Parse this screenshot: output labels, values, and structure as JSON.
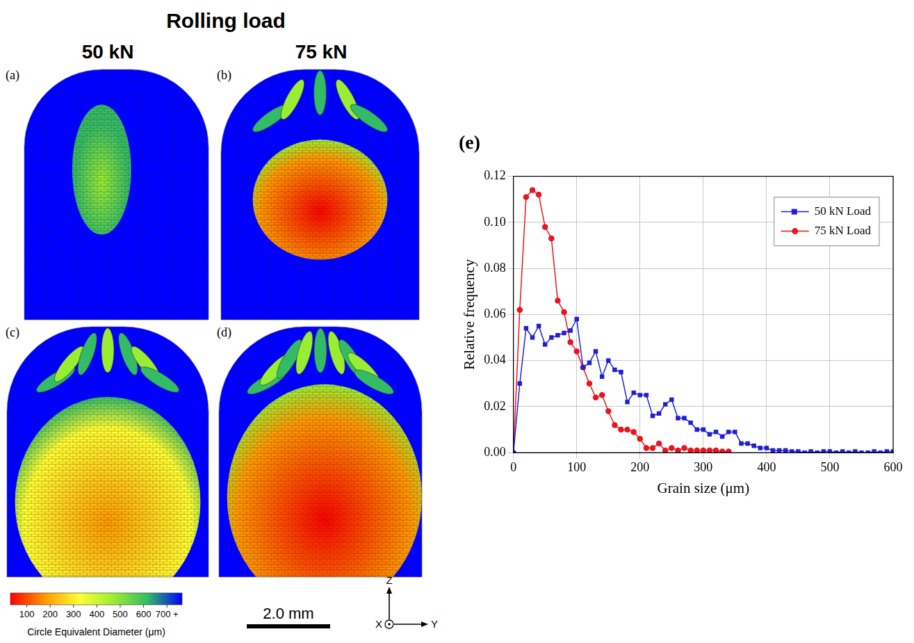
{
  "figure": {
    "title": "Rolling load",
    "columns": [
      "50 kN",
      "75 kN"
    ],
    "panels": [
      "(a)",
      "(b)",
      "(c)",
      "(d)"
    ],
    "colorbar": {
      "label": "Circle Equivalent Diameter (μm)",
      "range": [
        30,
        765
      ],
      "ticks": [
        100,
        200,
        300,
        400,
        500,
        600,
        {
          "value": 700,
          "label": "700 +"
        }
      ],
      "colors": [
        "#ff0000",
        "#ff9900",
        "#ffff33",
        "#99ee33",
        "#33bb66",
        "#0000ff"
      ]
    },
    "scale_bar": "2.0 mm",
    "axes_triad": [
      "Z",
      "X",
      "Y"
    ]
  },
  "chart_data": {
    "type": "line",
    "title": "(e)",
    "xlabel": "Grain size (μm)",
    "ylabel": "Relative frequency",
    "xlim": [
      0,
      600
    ],
    "xticks": [
      0,
      100,
      200,
      300,
      400,
      500,
      600
    ],
    "ylim": [
      0,
      0.12
    ],
    "yticks": [
      {
        "value": 0,
        "label": "0.00"
      },
      {
        "value": 0.02,
        "label": "0.02"
      },
      {
        "value": 0.04,
        "label": "0.04"
      },
      {
        "value": 0.06,
        "label": "0.06"
      },
      {
        "value": 0.08,
        "label": "0.08"
      },
      {
        "value": 0.1,
        "label": "0.10"
      },
      {
        "value": 0.12,
        "label": "0.12"
      }
    ],
    "grid": true,
    "legend": "upper right",
    "series": [
      {
        "name": "50 kN Load",
        "color": "#1f1fd6",
        "marker": "square",
        "x": [
          0,
          10,
          20,
          30,
          40,
          50,
          60,
          70,
          80,
          90,
          100,
          110,
          120,
          130,
          140,
          150,
          160,
          170,
          180,
          190,
          200,
          210,
          220,
          230,
          240,
          250,
          260,
          270,
          280,
          290,
          300,
          310,
          320,
          330,
          340,
          350,
          360,
          370,
          380,
          390,
          400,
          410,
          420,
          430,
          440,
          450,
          460,
          470,
          480,
          490,
          500,
          510,
          520,
          530,
          540,
          550,
          560,
          570,
          580,
          590,
          600
        ],
        "values": [
          0,
          0.03,
          0.054,
          0.05,
          0.055,
          0.047,
          0.05,
          0.051,
          0.052,
          0.053,
          0.058,
          0.037,
          0.039,
          0.044,
          0.033,
          0.04,
          0.036,
          0.035,
          0.022,
          0.026,
          0.025,
          0.025,
          0.016,
          0.017,
          0.021,
          0.023,
          0.015,
          0.015,
          0.013,
          0.01,
          0.01,
          0.008,
          0.009,
          0.007,
          0.009,
          0.009,
          0.004,
          0.004,
          0.003,
          0.002,
          0.002,
          0.001,
          0.001,
          0.001,
          0.0005,
          0.0005,
          0,
          0.0005,
          0,
          0.0005,
          0.0005,
          0,
          0.0005,
          0,
          0.0005,
          0,
          0,
          0.0005,
          0,
          0.0005,
          0.0005
        ]
      },
      {
        "name": "75 kN Load",
        "color": "#e8141e",
        "marker": "circle",
        "x": [
          0,
          10,
          20,
          30,
          40,
          50,
          60,
          70,
          80,
          90,
          100,
          110,
          120,
          130,
          140,
          150,
          160,
          170,
          180,
          190,
          200,
          210,
          220,
          230,
          240,
          250,
          260,
          270,
          280,
          290,
          300,
          310,
          320,
          330,
          340
        ],
        "values": [
          0,
          0.062,
          0.111,
          0.114,
          0.112,
          0.098,
          0.093,
          0.066,
          0.061,
          0.048,
          0.044,
          0.037,
          0.03,
          0.024,
          0.025,
          0.018,
          0.012,
          0.01,
          0.01,
          0.009,
          0.006,
          0.002,
          0.002,
          0.004,
          0.001,
          0.002,
          0.001,
          0.002,
          0.001,
          0.001,
          0.001,
          0.001,
          0.001,
          0.0005,
          0.0005
        ]
      }
    ]
  }
}
